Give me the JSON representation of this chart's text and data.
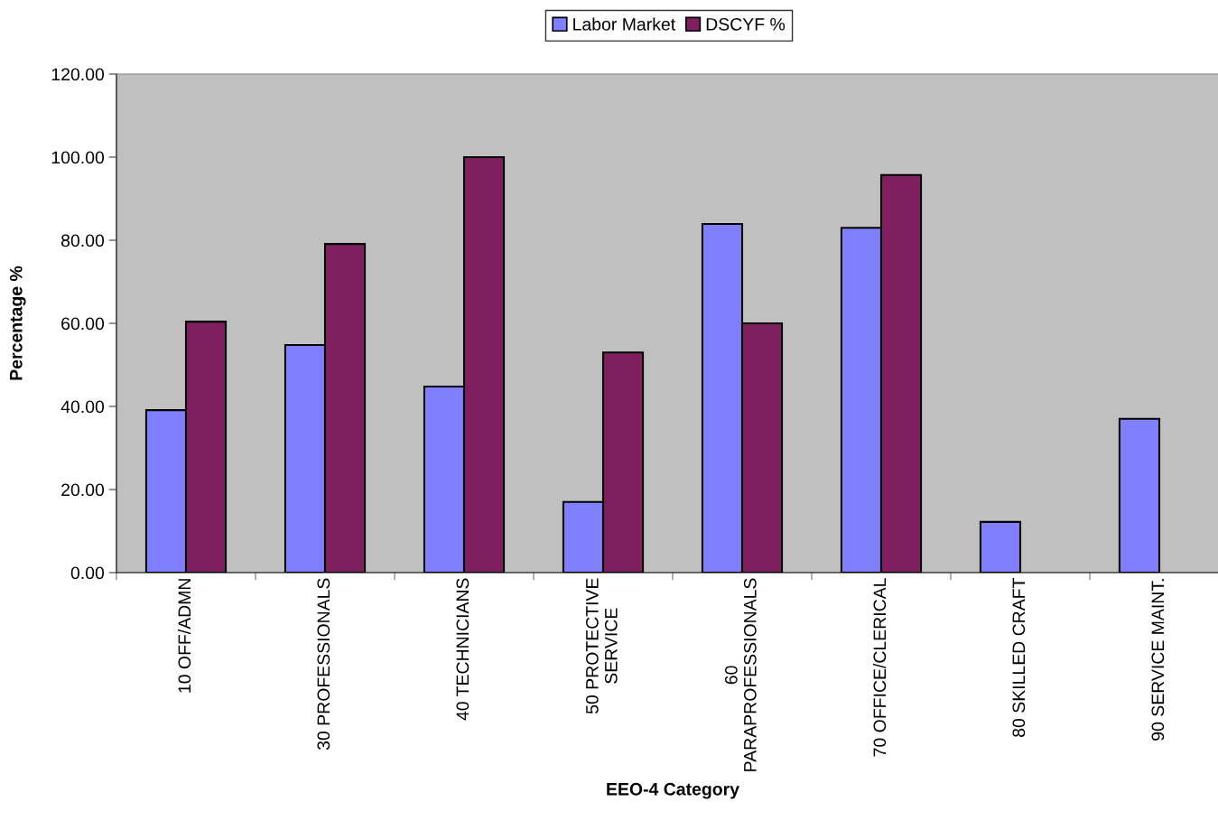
{
  "chart_data": {
    "type": "bar",
    "xlabel": "EEO-4 Category",
    "ylabel": "Percentage %",
    "categories": [
      "10 OFF/ADMN",
      "30 PROFESSIONALS",
      "40 TECHNICIANS",
      "50 PROTECTIVE\nSERVICE",
      "60\nPARAPROFESSIONALS",
      "70 OFFICE/CLERICAL",
      "80 SKILLED CRAFT",
      "90 SERVICE MAINT."
    ],
    "series": [
      {
        "name": "Labor Market",
        "color": "#8080ff",
        "values": [
          39.1,
          54.8,
          44.8,
          17.0,
          83.9,
          83.0,
          12.2,
          37.0
        ]
      },
      {
        "name": "DSCYF %",
        "color": "#7f1f5f",
        "values": [
          60.4,
          79.1,
          100.0,
          53.0,
          60.0,
          95.7,
          null,
          null
        ]
      }
    ],
    "ylim": [
      0,
      120
    ],
    "yticks": [
      {
        "value": 0,
        "label": "0.00"
      },
      {
        "value": 20,
        "label": "20.00"
      },
      {
        "value": 40,
        "label": "40.00"
      },
      {
        "value": 60,
        "label": "60.00"
      },
      {
        "value": 80,
        "label": "80.00"
      },
      {
        "value": 100,
        "label": "100.00"
      },
      {
        "value": 120,
        "label": "120.00"
      }
    ],
    "legend": "top"
  }
}
